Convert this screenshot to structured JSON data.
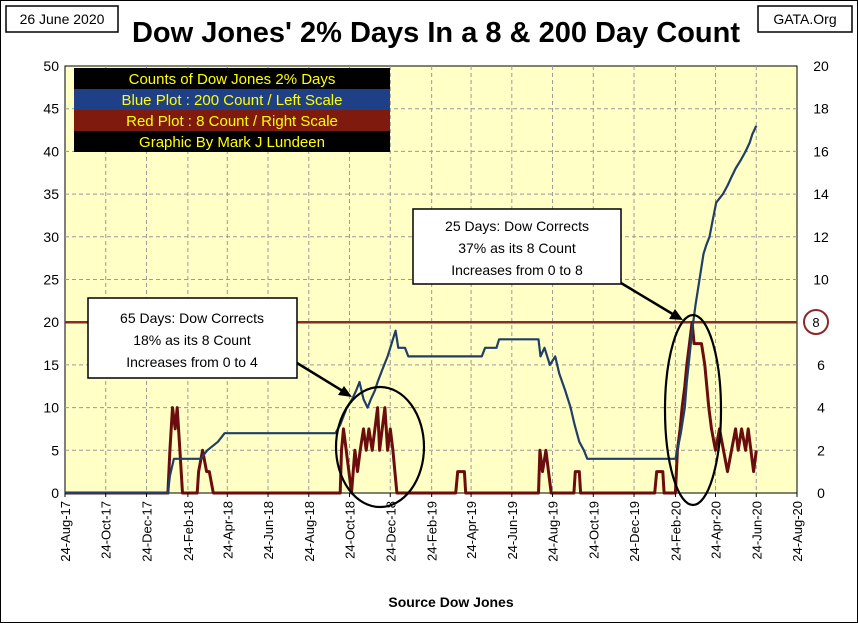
{
  "header": {
    "date": "26 June 2020",
    "title": "Dow Jones' 2% Days In a 8 & 200 Day Count",
    "source_tag": "GATA.Org"
  },
  "legend": {
    "lines": [
      {
        "text": "Counts of Dow Jones 2% Days",
        "bg": "#000000",
        "fg": "#ffff00"
      },
      {
        "text": "Blue Plot : 200 Count / Left Scale",
        "bg": "#1f3f86",
        "fg": "#ffff00"
      },
      {
        "text": "Red Plot : 8 Count / Right Scale",
        "bg": "#7f1a0e",
        "fg": "#ffff00"
      },
      {
        "text": "Graphic By Mark J Lundeen",
        "bg": "#000000",
        "fg": "#ffff00"
      }
    ]
  },
  "annotations": [
    {
      "lines": [
        "65 Days: Dow Corrects",
        "18% as its 8 Count",
        "Increases from 0 to 4"
      ]
    },
    {
      "lines": [
        "25 Days: Dow Corrects",
        "37% as its 8 Count",
        "Increases from 0 to 8"
      ]
    }
  ],
  "reference_label": "8",
  "colors": {
    "plot_bg": "#ffffc6",
    "grid": "#9a9a9a",
    "blue": "#1f3f66",
    "red": "#6b0d0d",
    "ref_line": "#8b2a2a"
  },
  "chart_data": {
    "type": "line",
    "xlabel": "Source Dow Jones",
    "x_ticks": [
      "24-Aug-17",
      "24-Oct-17",
      "24-Dec-17",
      "24-Feb-18",
      "24-Apr-18",
      "24-Jun-18",
      "24-Aug-18",
      "24-Oct-18",
      "24-Dec-18",
      "24-Feb-19",
      "24-Apr-19",
      "24-Jun-19",
      "24-Aug-19",
      "24-Oct-19",
      "24-Dec-19",
      "24-Feb-20",
      "24-Apr-20",
      "24-Jun-20",
      "24-Aug-20"
    ],
    "xlim": [
      "24-Aug-17",
      "24-Aug-20"
    ],
    "left_axis": {
      "ylim": [
        0,
        50
      ],
      "ticks": [
        0,
        5,
        10,
        15,
        20,
        25,
        30,
        35,
        40,
        45,
        50
      ]
    },
    "right_axis": {
      "ylim": [
        0,
        20
      ],
      "ticks": [
        0,
        2,
        4,
        6,
        8,
        10,
        12,
        14,
        16,
        18,
        20
      ]
    },
    "grid": true,
    "reference_line": {
      "axis": "right",
      "value": 8
    },
    "series": [
      {
        "name": "200 Count",
        "axis": "left",
        "points": [
          [
            "2017-08-24",
            0
          ],
          [
            "2018-01-25",
            0
          ],
          [
            "2018-01-28",
            2
          ],
          [
            "2018-02-03",
            4
          ],
          [
            "2018-03-15",
            4
          ],
          [
            "2018-03-25",
            5
          ],
          [
            "2018-04-10",
            6
          ],
          [
            "2018-04-20",
            7
          ],
          [
            "2018-10-03",
            7
          ],
          [
            "2018-10-10",
            8
          ],
          [
            "2018-10-20",
            10
          ],
          [
            "2018-10-28",
            11
          ],
          [
            "2018-11-03",
            12
          ],
          [
            "2018-11-08",
            13
          ],
          [
            "2018-11-14",
            11
          ],
          [
            "2018-11-20",
            10
          ],
          [
            "2018-11-25",
            11
          ],
          [
            "2018-12-01",
            12
          ],
          [
            "2018-12-05",
            13
          ],
          [
            "2018-12-10",
            14
          ],
          [
            "2018-12-15",
            15
          ],
          [
            "2018-12-20",
            16
          ],
          [
            "2018-12-24",
            17
          ],
          [
            "2018-12-28",
            18
          ],
          [
            "2019-01-01",
            19
          ],
          [
            "2019-01-05",
            17
          ],
          [
            "2019-01-15",
            17
          ],
          [
            "2019-01-20",
            16
          ],
          [
            "2019-05-10",
            16
          ],
          [
            "2019-05-15",
            17
          ],
          [
            "2019-06-01",
            17
          ],
          [
            "2019-06-05",
            18
          ],
          [
            "2019-08-03",
            18
          ],
          [
            "2019-08-06",
            16
          ],
          [
            "2019-08-12",
            17
          ],
          [
            "2019-08-20",
            15
          ],
          [
            "2019-08-28",
            16
          ],
          [
            "2019-09-03",
            14
          ],
          [
            "2019-09-12",
            12
          ],
          [
            "2019-09-20",
            10
          ],
          [
            "2019-09-26",
            8
          ],
          [
            "2019-10-03",
            6
          ],
          [
            "2019-10-10",
            5
          ],
          [
            "2019-10-15",
            4
          ],
          [
            "2020-02-24",
            4
          ],
          [
            "2020-02-27",
            5
          ],
          [
            "2020-03-03",
            7
          ],
          [
            "2020-03-09",
            10
          ],
          [
            "2020-03-12",
            13
          ],
          [
            "2020-03-16",
            16
          ],
          [
            "2020-03-20",
            19
          ],
          [
            "2020-03-25",
            22
          ],
          [
            "2020-03-31",
            25
          ],
          [
            "2020-04-06",
            28
          ],
          [
            "2020-04-10",
            29
          ],
          [
            "2020-04-15",
            30
          ],
          [
            "2020-04-20",
            32
          ],
          [
            "2020-04-25",
            34
          ],
          [
            "2020-05-05",
            35
          ],
          [
            "2020-05-12",
            36
          ],
          [
            "2020-05-18",
            37
          ],
          [
            "2020-05-24",
            38
          ],
          [
            "2020-06-01",
            39
          ],
          [
            "2020-06-08",
            40
          ],
          [
            "2020-06-14",
            41
          ],
          [
            "2020-06-18",
            42
          ],
          [
            "2020-06-24",
            43
          ]
        ]
      },
      {
        "name": "8 Count",
        "axis": "right",
        "points": [
          [
            "2017-08-24",
            0
          ],
          [
            "2018-01-25",
            0
          ],
          [
            "2018-01-28",
            2
          ],
          [
            "2018-02-01",
            4
          ],
          [
            "2018-02-05",
            3
          ],
          [
            "2018-02-08",
            4
          ],
          [
            "2018-02-12",
            2
          ],
          [
            "2018-02-16",
            0
          ],
          [
            "2018-03-10",
            0
          ],
          [
            "2018-03-12",
            1
          ],
          [
            "2018-03-18",
            2
          ],
          [
            "2018-03-24",
            1
          ],
          [
            "2018-03-28",
            1
          ],
          [
            "2018-04-03",
            0
          ],
          [
            "2018-10-10",
            0
          ],
          [
            "2018-10-12",
            2
          ],
          [
            "2018-10-15",
            3
          ],
          [
            "2018-10-19",
            2
          ],
          [
            "2018-10-23",
            1
          ],
          [
            "2018-10-27",
            0
          ],
          [
            "2018-11-01",
            2
          ],
          [
            "2018-11-05",
            1
          ],
          [
            "2018-11-09",
            2
          ],
          [
            "2018-11-14",
            3
          ],
          [
            "2018-11-18",
            2
          ],
          [
            "2018-11-22",
            3
          ],
          [
            "2018-11-27",
            2
          ],
          [
            "2018-12-01",
            3
          ],
          [
            "2018-12-05",
            4
          ],
          [
            "2018-12-08",
            2
          ],
          [
            "2018-12-12",
            3
          ],
          [
            "2018-12-16",
            4
          ],
          [
            "2018-12-20",
            2
          ],
          [
            "2018-12-24",
            3
          ],
          [
            "2018-12-28",
            2
          ],
          [
            "2019-01-03",
            0
          ],
          [
            "2019-04-01",
            0
          ],
          [
            "2019-04-04",
            1
          ],
          [
            "2019-04-14",
            1
          ],
          [
            "2019-04-16",
            0
          ],
          [
            "2019-08-03",
            0
          ],
          [
            "2019-08-05",
            2
          ],
          [
            "2019-08-09",
            1
          ],
          [
            "2019-08-14",
            2
          ],
          [
            "2019-08-18",
            1
          ],
          [
            "2019-08-22",
            0
          ],
          [
            "2019-09-25",
            0
          ],
          [
            "2019-09-27",
            1
          ],
          [
            "2019-10-03",
            1
          ],
          [
            "2019-10-05",
            0
          ],
          [
            "2020-01-24",
            0
          ],
          [
            "2020-01-27",
            1
          ],
          [
            "2020-02-05",
            1
          ],
          [
            "2020-02-07",
            0
          ],
          [
            "2020-02-24",
            0
          ],
          [
            "2020-02-27",
            2
          ],
          [
            "2020-03-02",
            3
          ],
          [
            "2020-03-05",
            4
          ],
          [
            "2020-03-09",
            5
          ],
          [
            "2020-03-12",
            6
          ],
          [
            "2020-03-16",
            7
          ],
          [
            "2020-03-20",
            8
          ],
          [
            "2020-03-23",
            7
          ],
          [
            "2020-03-27",
            7
          ],
          [
            "2020-04-03",
            7
          ],
          [
            "2020-04-08",
            6
          ],
          [
            "2020-04-14",
            4
          ],
          [
            "2020-04-18",
            3
          ],
          [
            "2020-04-24",
            2
          ],
          [
            "2020-04-30",
            3
          ],
          [
            "2020-05-06",
            2
          ],
          [
            "2020-05-12",
            1
          ],
          [
            "2020-05-18",
            2
          ],
          [
            "2020-05-24",
            3
          ],
          [
            "2020-05-28",
            2
          ],
          [
            "2020-06-02",
            3
          ],
          [
            "2020-06-08",
            2
          ],
          [
            "2020-06-12",
            3
          ],
          [
            "2020-06-16",
            2
          ],
          [
            "2020-06-20",
            1
          ],
          [
            "2020-06-24",
            2
          ]
        ]
      }
    ]
  }
}
